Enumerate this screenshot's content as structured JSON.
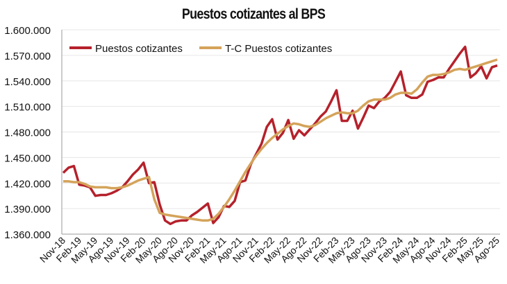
{
  "chart_data": {
    "type": "line",
    "title": "Puestos cotizantes al BPS",
    "xlabel": "",
    "ylabel": "",
    "ylim": [
      1360000,
      1600000
    ],
    "yticks": [
      "1.360.000",
      "1.390.000",
      "1.420.000",
      "1.450.000",
      "1.480.000",
      "1.510.000",
      "1.540.000",
      "1.570.000",
      "1.600.000"
    ],
    "ytick_values": [
      1360000,
      1390000,
      1420000,
      1450000,
      1480000,
      1510000,
      1540000,
      1570000,
      1600000
    ],
    "xtick_labels": [
      "Nov-18",
      "Feb-19",
      "May-19",
      "Ago-19",
      "Nov-19",
      "Feb-20",
      "May-20",
      "Ago-20",
      "Nov-20",
      "Feb-21",
      "May-21",
      "Ago-21",
      "Nov-21",
      "Feb-22",
      "May-22",
      "Ago-22",
      "Nov-22",
      "Feb-23",
      "May-23",
      "Ago-23",
      "Nov-23",
      "Feb-24",
      "May-24",
      "Ago-24",
      "Nov-24",
      "Feb-25",
      "May-25",
      "Ago-25"
    ],
    "x_note_monthly_from": "Nov-18",
    "grid": true,
    "legend": "top-left",
    "series": [
      {
        "name": "Puestos cotizantes",
        "color": "#b5212b",
        "values": [
          1432000,
          1438000,
          1440000,
          1418000,
          1417000,
          1415000,
          1405000,
          1406000,
          1406000,
          1408000,
          1411000,
          1415000,
          1422000,
          1430000,
          1436000,
          1444000,
          1420000,
          1421000,
          1395000,
          1376000,
          1372000,
          1375000,
          1376000,
          1376000,
          1382000,
          1386000,
          1391000,
          1396000,
          1373000,
          1380000,
          1393000,
          1392000,
          1399000,
          1421000,
          1423000,
          1442000,
          1454000,
          1466000,
          1486000,
          1495000,
          1471000,
          1479000,
          1494000,
          1472000,
          1482000,
          1476000,
          1483000,
          1490000,
          1498000,
          1504000,
          1516000,
          1529000,
          1493000,
          1493000,
          1505000,
          1484000,
          1497000,
          1511000,
          1508000,
          1516000,
          1520000,
          1527000,
          1539000,
          1551000,
          1523000,
          1520000,
          1520000,
          1524000,
          1539000,
          1541000,
          1544000,
          1544000,
          1554000,
          1563000,
          1572000,
          1580000,
          1544000,
          1549000,
          1557000,
          1543000,
          1556000,
          1558000
        ]
      },
      {
        "name": "T-C Puestos cotizantes",
        "color": "#d4a35a",
        "values": [
          1422000,
          1422000,
          1421000,
          1421000,
          1419000,
          1416000,
          1415000,
          1415000,
          1415000,
          1414000,
          1414000,
          1415000,
          1417000,
          1420000,
          1423000,
          1425000,
          1427000,
          1401000,
          1385000,
          1383000,
          1382000,
          1381000,
          1380000,
          1379000,
          1378000,
          1377000,
          1376000,
          1376000,
          1378000,
          1384000,
          1392000,
          1401000,
          1411000,
          1422000,
          1433000,
          1443000,
          1452000,
          1460000,
          1467000,
          1473000,
          1478000,
          1483000,
          1487000,
          1490000,
          1489000,
          1487000,
          1486000,
          1488000,
          1492000,
          1496000,
          1499000,
          1502000,
          1503000,
          1502000,
          1502000,
          1505000,
          1511000,
          1516000,
          1518000,
          1518000,
          1518000,
          1520000,
          1524000,
          1526000,
          1526000,
          1525000,
          1530000,
          1538000,
          1545000,
          1547000,
          1547000,
          1548000,
          1550000,
          1553000,
          1554000,
          1553000,
          1555000,
          1557000,
          1559000,
          1561000,
          1563000,
          1565000
        ]
      }
    ]
  }
}
